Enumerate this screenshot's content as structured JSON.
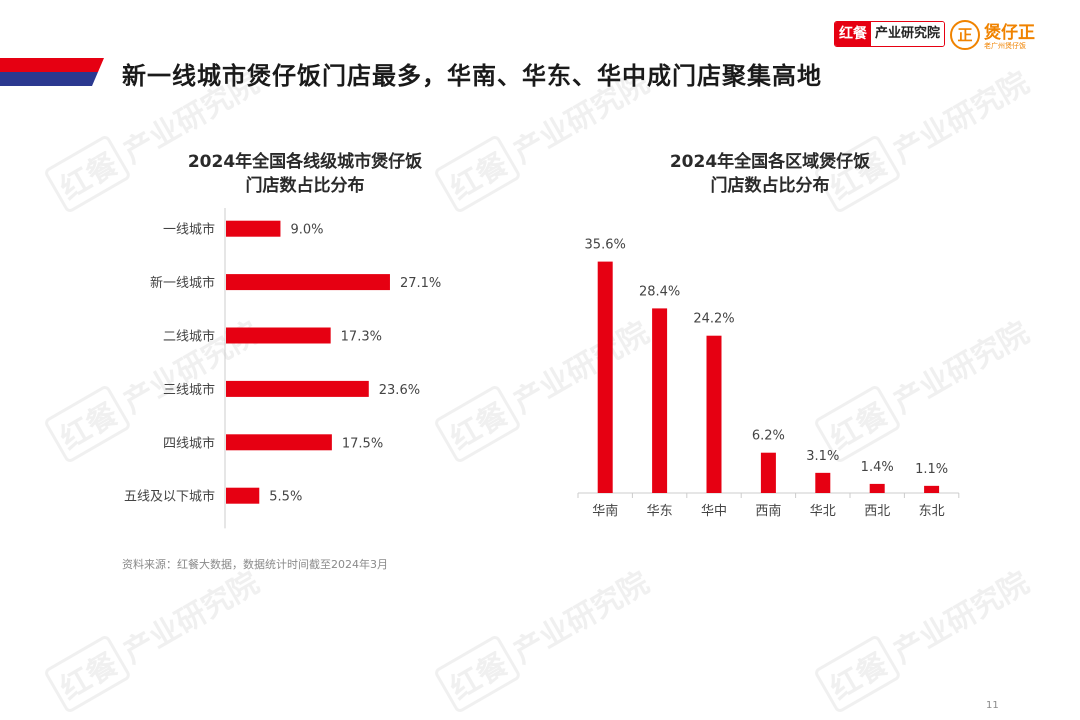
{
  "page": {
    "title": "新一线城市煲仔饭门店最多，华南、华东、华中成门店聚集高地",
    "source": "资料来源：红餐大数据，数据统计时间截至2024年3月",
    "page_number": "11"
  },
  "logos": {
    "hongcan_mark": "红餐",
    "hongcan_text": "产业研究院",
    "brand_mark": "正",
    "brand_name": "煲仔正",
    "brand_sub": "老广州煲仔饭"
  },
  "watermark": {
    "mark": "红餐",
    "text": "产业研究院"
  },
  "colors": {
    "accent": "#e60012",
    "stripe_blue": "#2b3990",
    "brand_orange": "#f08300"
  },
  "chart_data": [
    {
      "type": "bar",
      "orientation": "horizontal",
      "title_lines": [
        "2024年全国各线级城市煲仔饭",
        "门店数占比分布"
      ],
      "categories": [
        "一线城市",
        "新一线城市",
        "二线城市",
        "三线城市",
        "四线城市",
        "五线及以下城市"
      ],
      "values": [
        9.0,
        27.1,
        17.3,
        23.6,
        17.5,
        5.5
      ],
      "labels": [
        "9.0%",
        "27.1%",
        "17.3%",
        "23.6%",
        "17.5%",
        "5.5%"
      ],
      "unit": "%",
      "grid": false
    },
    {
      "type": "bar",
      "orientation": "vertical",
      "title_lines": [
        "2024年全国各区域煲仔饭",
        "门店数占比分布"
      ],
      "categories": [
        "华南",
        "华东",
        "华中",
        "西南",
        "华北",
        "西北",
        "东北"
      ],
      "values": [
        35.6,
        28.4,
        24.2,
        6.2,
        3.1,
        1.4,
        1.1
      ],
      "labels": [
        "35.6%",
        "28.4%",
        "24.2%",
        "6.2%",
        "3.1%",
        "1.4%",
        "1.1%"
      ],
      "unit": "%",
      "grid": false
    }
  ]
}
